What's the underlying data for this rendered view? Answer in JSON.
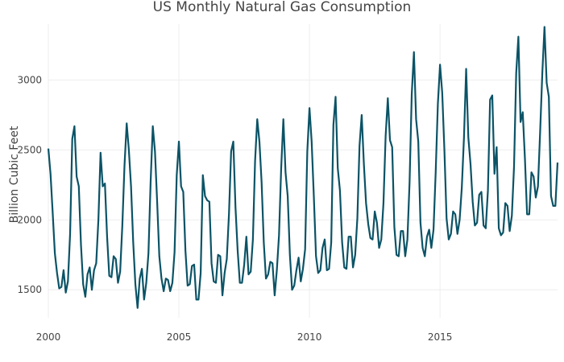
{
  "chart_data": {
    "type": "line",
    "title": "US Monthly Natural Gas Consumption",
    "xlabel": "",
    "ylabel": "Billion Cubic Feet",
    "x_ticks": [
      {
        "value": 2000,
        "label": "2000"
      },
      {
        "value": 2005,
        "label": "2005"
      },
      {
        "value": 2010,
        "label": "2010"
      },
      {
        "value": 2015,
        "label": "2015"
      }
    ],
    "y_ticks": [
      {
        "value": 1500,
        "label": "1500"
      },
      {
        "value": 2000,
        "label": "2000"
      },
      {
        "value": 2500,
        "label": "2500"
      },
      {
        "value": 3000,
        "label": "3000"
      }
    ],
    "xlim": [
      2000,
      2019.5
    ],
    "ylim": [
      1300,
      3400
    ],
    "grid": true,
    "legend": "none",
    "line_color": "#0b5366",
    "series": [
      {
        "start_year": 2000,
        "frequency": "monthly",
        "values": [
          2510,
          2330,
          2050,
          1760,
          1620,
          1510,
          1520,
          1640,
          1480,
          1560,
          1900,
          2580,
          2670,
          2310,
          2240,
          1820,
          1540,
          1450,
          1610,
          1660,
          1500,
          1640,
          1690,
          2000,
          2480,
          2240,
          2260,
          1880,
          1600,
          1590,
          1740,
          1720,
          1550,
          1630,
          1960,
          2390,
          2690,
          2500,
          2240,
          1840,
          1540,
          1370,
          1580,
          1650,
          1430,
          1550,
          1760,
          2270,
          2670,
          2490,
          2130,
          1740,
          1580,
          1490,
          1580,
          1570,
          1490,
          1550,
          1770,
          2320,
          2560,
          2240,
          2200,
          1780,
          1530,
          1540,
          1670,
          1680,
          1430,
          1430,
          1620,
          2320,
          2170,
          2140,
          2130,
          1690,
          1560,
          1550,
          1750,
          1740,
          1460,
          1620,
          1720,
          2040,
          2490,
          2560,
          2090,
          1780,
          1550,
          1550,
          1680,
          1880,
          1610,
          1630,
          1860,
          2420,
          2720,
          2560,
          2270,
          1840,
          1580,
          1610,
          1700,
          1690,
          1460,
          1640,
          1890,
          2370,
          2720,
          2340,
          2170,
          1750,
          1500,
          1530,
          1640,
          1730,
          1560,
          1650,
          1790,
          2490,
          2800,
          2560,
          2170,
          1740,
          1620,
          1640,
          1800,
          1860,
          1640,
          1650,
          1840,
          2680,
          2880,
          2370,
          2210,
          1840,
          1660,
          1650,
          1880,
          1880,
          1660,
          1750,
          2010,
          2530,
          2750,
          2400,
          2120,
          1970,
          1870,
          1860,
          2060,
          1980,
          1800,
          1860,
          2120,
          2600,
          2870,
          2570,
          2520,
          1950,
          1750,
          1740,
          1920,
          1920,
          1740,
          1860,
          2270,
          2900,
          3200,
          2720,
          2560,
          1980,
          1800,
          1740,
          1880,
          1930,
          1800,
          1930,
          2340,
          2830,
          3110,
          2910,
          2500,
          2010,
          1860,
          1900,
          2060,
          2040,
          1900,
          2000,
          2230,
          2590,
          3080,
          2590,
          2400,
          2130,
          1960,
          1980,
          2180,
          2200,
          1960,
          1940,
          2210,
          2860,
          2890,
          2330,
          2520,
          1940,
          1890,
          1910,
          2120,
          2100,
          1920,
          2030,
          2380,
          3050,
          3310,
          2700,
          2770,
          2440,
          2040,
          2040,
          2340,
          2310,
          2160,
          2240,
          2630,
          3050,
          3380,
          2980,
          2880,
          2170,
          2100,
          2100,
          2410
        ]
      }
    ]
  }
}
